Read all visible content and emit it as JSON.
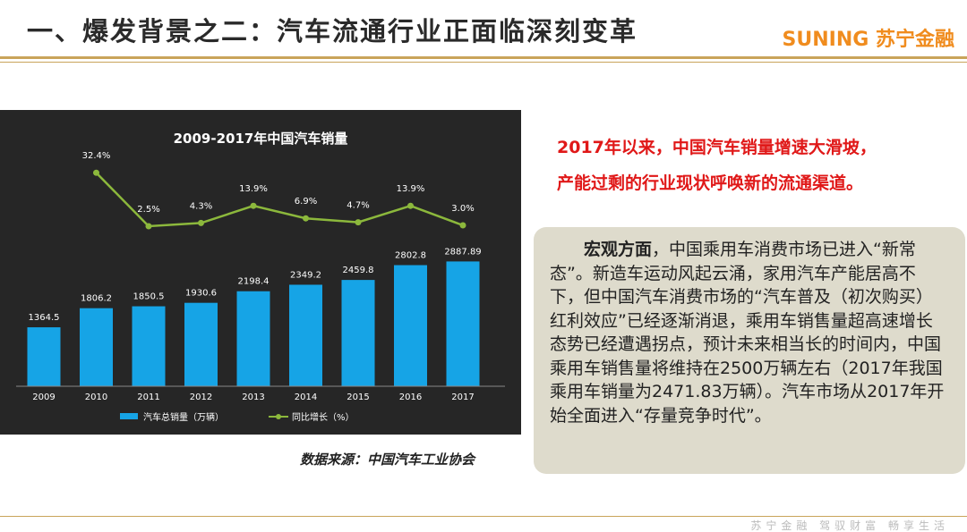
{
  "header": {
    "title": "一、爆发背景之二：汽车流通行业正面临深刻变革",
    "logo_en": "SUNING",
    "logo_cn": "苏宁金融"
  },
  "chart_data": {
    "type": "bar_line",
    "title": "2009-2017年中国汽车销量",
    "categories": [
      "2009",
      "2010",
      "2011",
      "2012",
      "2013",
      "2014",
      "2015",
      "2016",
      "2017"
    ],
    "series": [
      {
        "name": "汽车总销量（万辆）",
        "type": "bar",
        "color": "#16a4e6",
        "values": [
          1364.5,
          1806.2,
          1850.5,
          1930.6,
          2198.4,
          2349.2,
          2459.8,
          2802.8,
          2887.89
        ]
      },
      {
        "name": "同比增长（%）",
        "type": "line",
        "axis": "y2",
        "color": "#8cb83c",
        "values": [
          null,
          32.4,
          2.5,
          4.3,
          13.9,
          6.9,
          4.7,
          13.9,
          3.0
        ],
        "value_labels": [
          null,
          "32.4%",
          "2.5%",
          "4.3%",
          "13.9%",
          "6.9%",
          "4.7%",
          "13.9%",
          "3.0%"
        ]
      }
    ],
    "ylim": [
      0,
      6000
    ],
    "y2lim": [
      -87,
      58
    ],
    "legend": "bottom"
  },
  "highlight": [
    "2017年以来，中国汽车销量增速大滑坡，",
    "产能过剩的行业现状呼唤新的流通渠道。"
  ],
  "paragraph": {
    "lead": "宏观方面",
    "text": "，中国乘用车消费市场已进入“新常态”。新造车运动风起云涌，家用汽车产能居高不下，但中国汽车消费市场的“汽车普及（初次购买）红利效应”已经逐渐消退，乘用车销售量超高速增长态势已经遭遇拐点，预计未来相当长的时间内，中国乘用车销售量将维持在2500万辆左右（2017年我国乘用车销量为2471.83万辆）。汽车市场从2017年开始全面进入“存量竞争时代”。"
  },
  "source": "数据来源：中国汽车工业协会",
  "footer": "苏宁金融 驾驭财富 畅享生活"
}
